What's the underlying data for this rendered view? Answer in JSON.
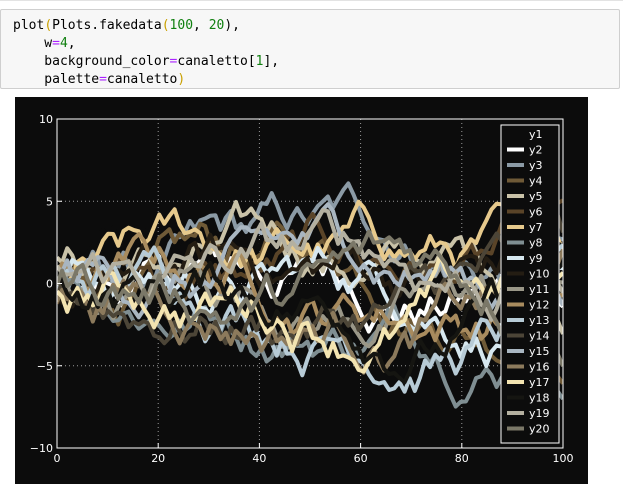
{
  "code_cell": {
    "lines": [
      [
        {
          "t": "plot",
          "c": "fn"
        },
        {
          "t": "(",
          "c": "paren"
        },
        {
          "t": "Plots.fakedata",
          "c": "fn"
        },
        {
          "t": "(",
          "c": "paren"
        },
        {
          "t": "100",
          "c": "num"
        },
        {
          "t": ", ",
          "c": "fn"
        },
        {
          "t": "20",
          "c": "num"
        },
        {
          "t": "),",
          "c": "fn"
        }
      ],
      [
        {
          "t": "    w",
          "c": "fn"
        },
        {
          "t": "=",
          "c": "eq"
        },
        {
          "t": "4",
          "c": "num"
        },
        {
          "t": ",",
          "c": "fn"
        }
      ],
      [
        {
          "t": "    background_color",
          "c": "fn"
        },
        {
          "t": "=",
          "c": "eq"
        },
        {
          "t": "canaletto[",
          "c": "fn"
        },
        {
          "t": "1",
          "c": "num"
        },
        {
          "t": "],",
          "c": "fn"
        }
      ],
      [
        {
          "t": "    palette",
          "c": "fn"
        },
        {
          "t": "=",
          "c": "eq"
        },
        {
          "t": "canaletto",
          "c": "fn"
        },
        {
          "t": ")",
          "c": "paren"
        }
      ]
    ]
  },
  "chart_data": {
    "type": "line",
    "title": "",
    "xlabel": "",
    "ylabel": "",
    "xlim": [
      0,
      100
    ],
    "ylim": [
      -10,
      10
    ],
    "xticks": [
      "0",
      "20",
      "40",
      "60",
      "80",
      "100"
    ],
    "yticks": [
      "10",
      "5",
      "0",
      "−5",
      "−10"
    ],
    "xtick_values": [
      0,
      20,
      40,
      60,
      80,
      100
    ],
    "ytick_values": [
      10,
      5,
      0,
      -5,
      -10
    ],
    "grid": true,
    "legend_position": "top-right",
    "background": "#0c0c0c",
    "axis_color": "#ffffff",
    "series_x_range": [
      0,
      100
    ],
    "series_length": 100,
    "series": [
      {
        "name": "y1",
        "color": "#0c0c0c"
      },
      {
        "name": "y2",
        "color": "#ffffff"
      },
      {
        "name": "y3",
        "color": "#8b9aa5"
      },
      {
        "name": "y4",
        "color": "#6f5a37"
      },
      {
        "name": "y5",
        "color": "#c9c2a8"
      },
      {
        "name": "y6",
        "color": "#5a4428"
      },
      {
        "name": "y7",
        "color": "#e6c98c"
      },
      {
        "name": "y8",
        "color": "#7f8e92"
      },
      {
        "name": "y9",
        "color": "#d6e7ef"
      },
      {
        "name": "y10",
        "color": "#241d13"
      },
      {
        "name": "y11",
        "color": "#9a9788"
      },
      {
        "name": "y12",
        "color": "#a88b5e"
      },
      {
        "name": "y13",
        "color": "#b7cbd6"
      },
      {
        "name": "y14",
        "color": "#4c4537"
      },
      {
        "name": "y15",
        "color": "#a9b6c1"
      },
      {
        "name": "y16",
        "color": "#8c7a5c"
      },
      {
        "name": "y17",
        "color": "#f3e4b1"
      },
      {
        "name": "y18",
        "color": "#151511"
      },
      {
        "name": "y19",
        "color": "#b4b0a0"
      },
      {
        "name": "y20",
        "color": "#7b7868"
      }
    ]
  }
}
